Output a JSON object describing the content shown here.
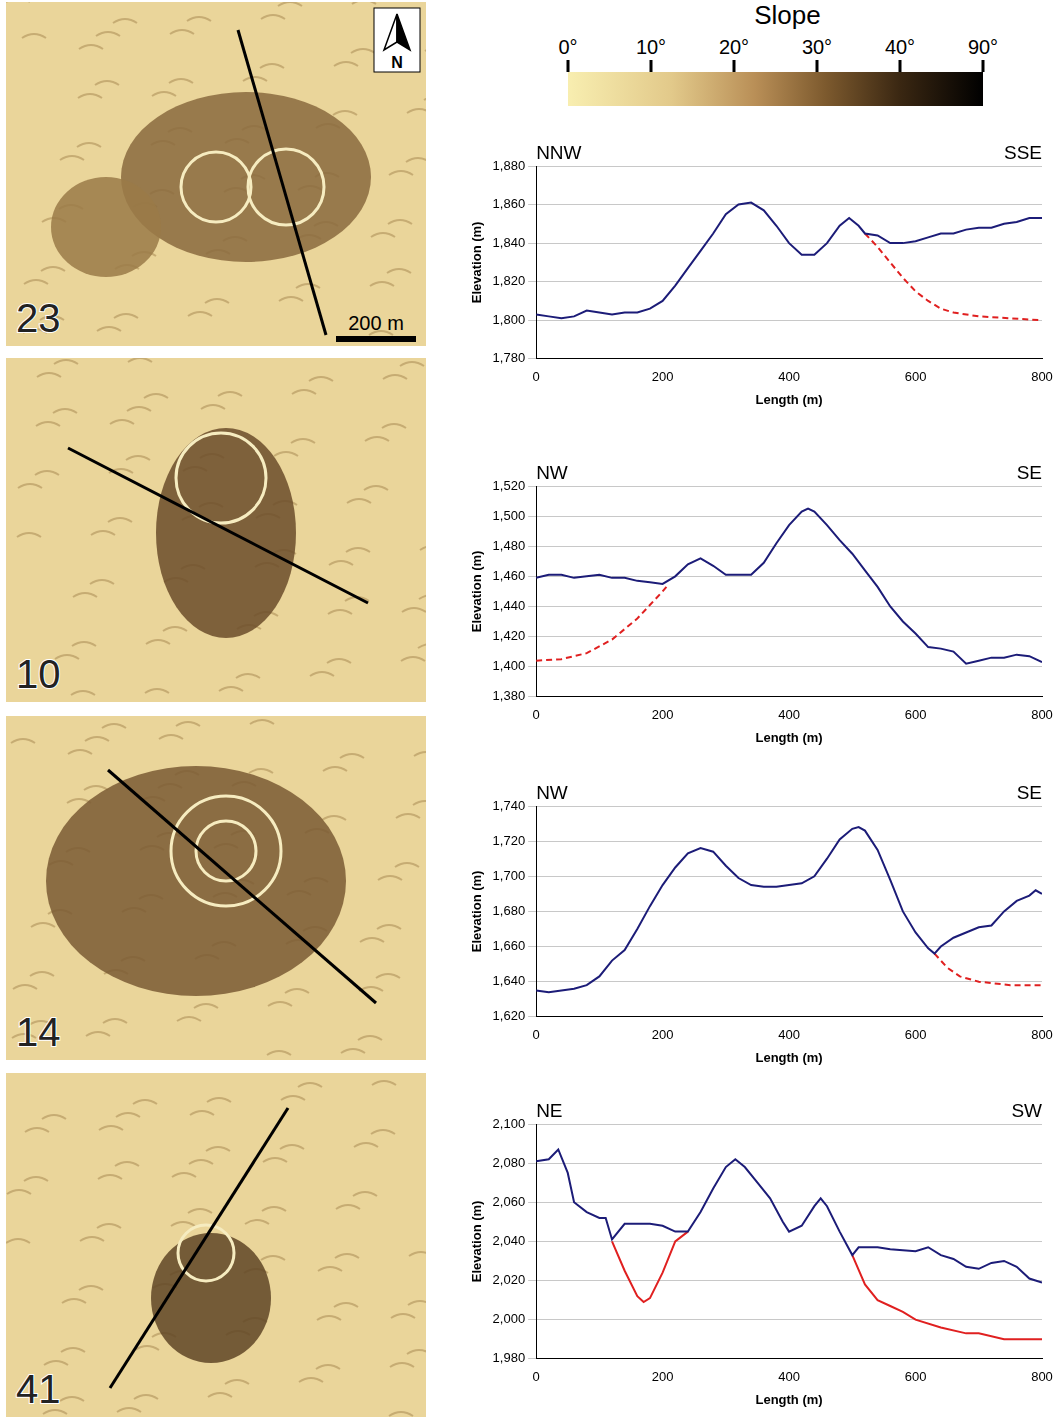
{
  "slope_legend": {
    "title": "Slope",
    "ticks": [
      {
        "value": 0,
        "label": "0°"
      },
      {
        "value": 10,
        "label": "10°"
      },
      {
        "value": 20,
        "label": "20°"
      },
      {
        "value": 30,
        "label": "30°"
      },
      {
        "value": 40,
        "label": "40°"
      },
      {
        "value": 90,
        "label": "90°"
      }
    ]
  },
  "maps": {
    "panels": [
      {
        "label": "23"
      },
      {
        "label": "10"
      },
      {
        "label": "14"
      },
      {
        "label": "41"
      }
    ],
    "north": "N",
    "scale_bar": "200 m"
  },
  "chart_data": [
    {
      "type": "line",
      "x_label": "Length (m)",
      "y_label": "Elevation (m)",
      "annotations": [
        "NNW",
        "SSE"
      ],
      "xlim": [
        0,
        800
      ],
      "xticks": [
        0,
        200,
        400,
        600,
        800
      ],
      "ylim": [
        1780,
        1880
      ],
      "yticks": [
        1780,
        1800,
        1820,
        1840,
        1860,
        1880
      ],
      "grid": "y",
      "series": [
        {
          "color": "#1c1c78",
          "line_style": "solid",
          "x": [
            0,
            20,
            40,
            60,
            80,
            100,
            120,
            140,
            160,
            180,
            200,
            220,
            240,
            260,
            280,
            300,
            320,
            340,
            360,
            380,
            400,
            420,
            440,
            460,
            480,
            495,
            510,
            520,
            540,
            560,
            580,
            600,
            620,
            640,
            660,
            680,
            700,
            720,
            740,
            760,
            780,
            800
          ],
          "values": [
            1803,
            1802,
            1801,
            1802,
            1805,
            1804,
            1803,
            1804,
            1804,
            1806,
            1810,
            1818,
            1827,
            1836,
            1845,
            1855,
            1860,
            1861,
            1857,
            1849,
            1840,
            1834,
            1834,
            1840,
            1849,
            1853,
            1849,
            1845,
            1844,
            1840,
            1840,
            1841,
            1843,
            1845,
            1845,
            1847,
            1848,
            1848,
            1850,
            1851,
            1853,
            1853
          ]
        },
        {
          "color": "#e02020",
          "line_style": "dashed",
          "x": [
            520,
            540,
            560,
            580,
            600,
            620,
            640,
            660,
            700,
            750,
            800
          ],
          "values": [
            1845,
            1838,
            1830,
            1822,
            1815,
            1810,
            1806,
            1804,
            1802,
            1801,
            1800
          ]
        }
      ]
    },
    {
      "type": "line",
      "x_label": "Length (m)",
      "y_label": "Elevation (m)",
      "annotations": [
        "NW",
        "SE"
      ],
      "xlim": [
        0,
        800
      ],
      "xticks": [
        0,
        200,
        400,
        600,
        800
      ],
      "ylim": [
        1380,
        1520
      ],
      "yticks": [
        1380,
        1400,
        1420,
        1440,
        1460,
        1480,
        1500,
        1520
      ],
      "grid": "y",
      "series": [
        {
          "color": "#1c1c78",
          "line_style": "solid",
          "x": [
            0,
            20,
            40,
            60,
            80,
            100,
            120,
            140,
            160,
            180,
            200,
            220,
            240,
            260,
            280,
            300,
            320,
            340,
            360,
            380,
            400,
            420,
            430,
            440,
            460,
            480,
            500,
            520,
            540,
            560,
            580,
            600,
            620,
            640,
            660,
            680,
            700,
            720,
            740,
            760,
            780,
            800
          ],
          "values": [
            1459,
            1461,
            1461,
            1459,
            1460,
            1461,
            1459,
            1459,
            1457,
            1456,
            1455,
            1460,
            1468,
            1472,
            1467,
            1461,
            1461,
            1461,
            1469,
            1482,
            1494,
            1503,
            1505,
            1503,
            1494,
            1484,
            1475,
            1464,
            1453,
            1440,
            1430,
            1422,
            1413,
            1412,
            1410,
            1402,
            1404,
            1406,
            1406,
            1408,
            1407,
            1403
          ]
        },
        {
          "color": "#e02020",
          "line_style": "dashed",
          "x": [
            0,
            40,
            80,
            120,
            160,
            200,
            210
          ],
          "values": [
            1404,
            1405,
            1409,
            1418,
            1432,
            1450,
            1455
          ]
        }
      ]
    },
    {
      "type": "line",
      "x_label": "Length (m)",
      "y_label": "Elevation (m)",
      "annotations": [
        "NW",
        "SE"
      ],
      "xlim": [
        0,
        800
      ],
      "xticks": [
        0,
        200,
        400,
        600,
        800
      ],
      "ylim": [
        1620,
        1740
      ],
      "yticks": [
        1620,
        1640,
        1660,
        1680,
        1700,
        1720,
        1740
      ],
      "grid": "y",
      "series": [
        {
          "color": "#1c1c78",
          "line_style": "solid",
          "x": [
            0,
            20,
            40,
            60,
            80,
            100,
            120,
            140,
            160,
            180,
            200,
            220,
            240,
            260,
            280,
            300,
            320,
            340,
            360,
            380,
            400,
            420,
            440,
            460,
            480,
            500,
            510,
            520,
            540,
            560,
            580,
            600,
            620,
            630,
            640,
            660,
            680,
            700,
            720,
            740,
            760,
            780,
            790,
            800
          ],
          "values": [
            1635,
            1634,
            1635,
            1636,
            1638,
            1643,
            1652,
            1658,
            1670,
            1683,
            1695,
            1705,
            1713,
            1716,
            1714,
            1706,
            1699,
            1695,
            1694,
            1694,
            1695,
            1696,
            1700,
            1710,
            1721,
            1727,
            1728,
            1726,
            1715,
            1698,
            1680,
            1668,
            1659,
            1656,
            1660,
            1665,
            1668,
            1671,
            1672,
            1680,
            1686,
            1689,
            1692,
            1690
          ]
        },
        {
          "color": "#e02020",
          "line_style": "dashed",
          "x": [
            630,
            650,
            670,
            700,
            750,
            800
          ],
          "values": [
            1656,
            1648,
            1643,
            1640,
            1638,
            1638
          ]
        }
      ]
    },
    {
      "type": "line",
      "x_label": "Length (m)",
      "y_label": "Elevation (m)",
      "annotations": [
        "NE",
        "SW"
      ],
      "xlim": [
        0,
        800
      ],
      "xticks": [
        0,
        200,
        400,
        600,
        800
      ],
      "ylim": [
        1980,
        2100
      ],
      "yticks": [
        1980,
        2000,
        2020,
        2040,
        2060,
        2080,
        2100
      ],
      "grid": "y",
      "series": [
        {
          "color": "#1c1c78",
          "line_style": "solid",
          "x": [
            0,
            20,
            35,
            50,
            60,
            80,
            100,
            110,
            120,
            140,
            160,
            180,
            200,
            220,
            240,
            260,
            280,
            300,
            315,
            330,
            350,
            370,
            390,
            400,
            420,
            440,
            450,
            460,
            480,
            500,
            510,
            540,
            560,
            600,
            620,
            640,
            660,
            680,
            700,
            720,
            740,
            760,
            780,
            800
          ],
          "values": [
            2081,
            2082,
            2087,
            2075,
            2060,
            2055,
            2052,
            2052,
            2041,
            2049,
            2049,
            2049,
            2048,
            2045,
            2045,
            2055,
            2067,
            2078,
            2082,
            2078,
            2070,
            2062,
            2050,
            2045,
            2048,
            2058,
            2062,
            2058,
            2045,
            2033,
            2037,
            2037,
            2036,
            2035,
            2037,
            2033,
            2031,
            2027,
            2026,
            2029,
            2030,
            2027,
            2021,
            2019
          ]
        },
        {
          "color": "#e02020",
          "line_style": "solid",
          "x": [
            120,
            140,
            160,
            170,
            180,
            200,
            220,
            240,
            370,
            500,
            520,
            540,
            560,
            580,
            600,
            640,
            680,
            700,
            740,
            770,
            800
          ],
          "values": [
            2040,
            2025,
            2012,
            2009,
            2011,
            2024,
            2040,
            2045,
            null,
            2033,
            2018,
            2010,
            2007,
            2004,
            2000,
            1996,
            1993,
            1993,
            1990,
            1990,
            1990
          ]
        }
      ]
    }
  ]
}
